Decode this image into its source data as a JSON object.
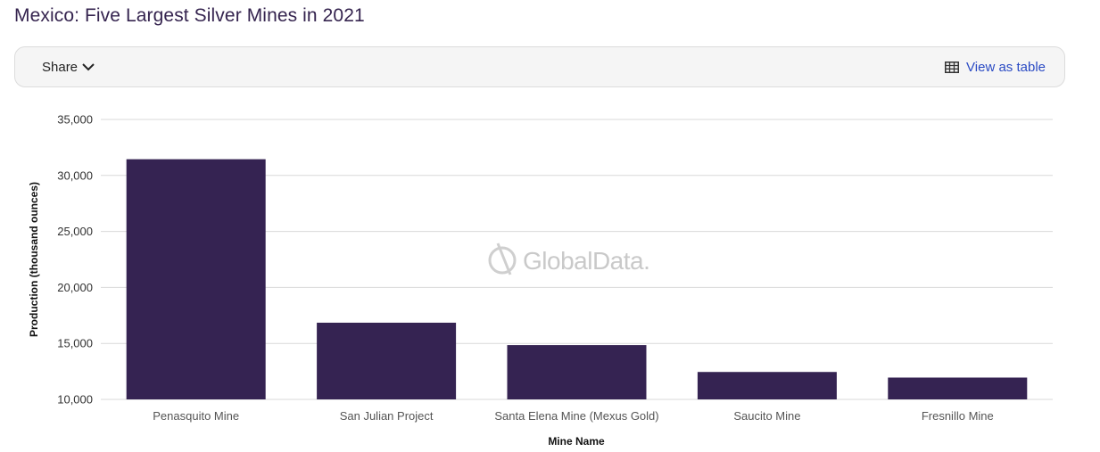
{
  "title": "Mexico: Five Largest Silver Mines in 2021",
  "toolbar": {
    "share_label": "Share",
    "view_table_label": "View as table"
  },
  "watermark": "GlobalData.",
  "colors": {
    "bar": "#352352",
    "grid": "#d9d9d9",
    "title": "#35244f",
    "link": "#2b4bc4"
  },
  "chart_data": {
    "type": "bar",
    "categories": [
      "Penasquito Mine",
      "San Julian Project",
      "Santa Elena Mine (Mexus Gold)",
      "Saucito Mine",
      "Fresnillo Mine"
    ],
    "values": [
      31450,
      16850,
      14850,
      12450,
      11950
    ],
    "xlabel": "Mine Name",
    "ylabel": "Production (thousand ounces)",
    "ylim": [
      10000,
      35000
    ],
    "yticks": [
      10000,
      15000,
      20000,
      25000,
      30000,
      35000
    ],
    "ytick_labels": [
      "10,000",
      "15,000",
      "20,000",
      "25,000",
      "30,000",
      "35,000"
    ],
    "grid": true,
    "legend": "none"
  }
}
